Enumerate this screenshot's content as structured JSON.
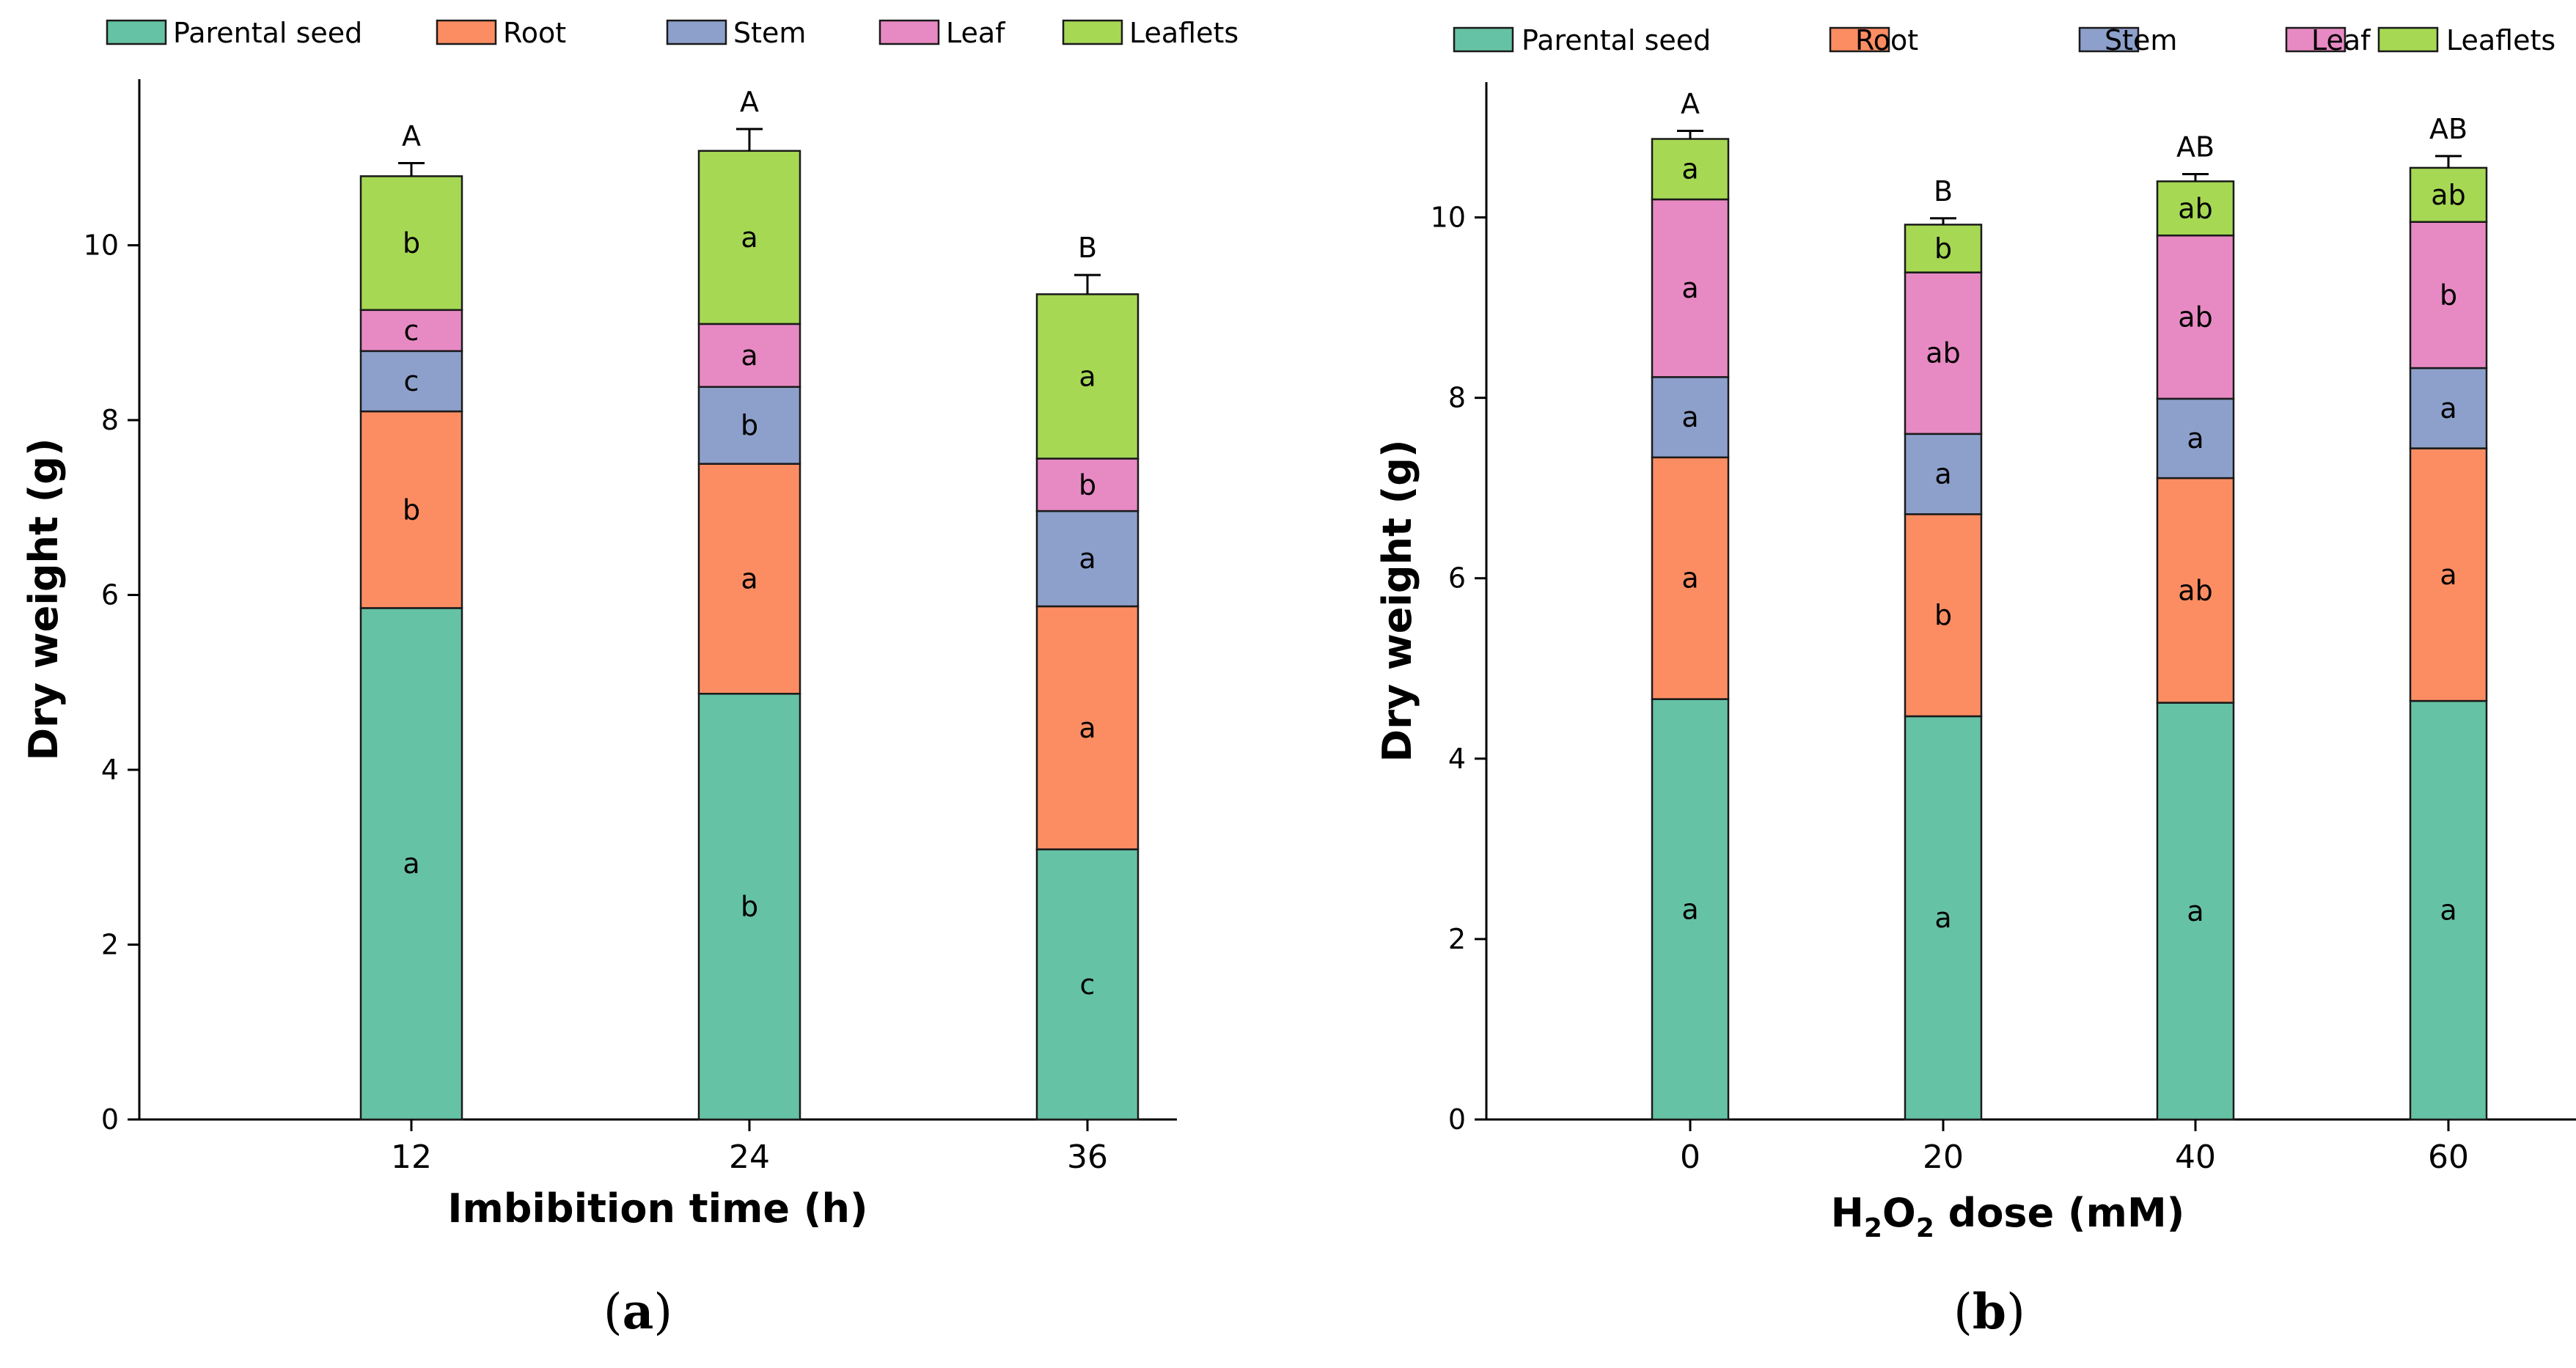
{
  "chart_data": [
    {
      "type": "bar",
      "stacked": true,
      "panel_label": "a",
      "xlabel": "Imbibition time (h)",
      "ylabel": "Dry weight (g)",
      "ylim": [
        0,
        11.9
      ],
      "yticks": [
        "0",
        "2",
        "4",
        "6",
        "8",
        "10"
      ],
      "categories": [
        "12",
        "24",
        "36"
      ],
      "legend_position": "top",
      "series": [
        {
          "name": "Parental seed",
          "color": "#66c2a5",
          "values": [
            5.85,
            4.87,
            3.09
          ],
          "letters": [
            "a",
            "b",
            "c"
          ]
        },
        {
          "name": "Root",
          "color": "#fc8d62",
          "values": [
            2.25,
            2.63,
            2.78
          ],
          "letters": [
            "b",
            "a",
            "a"
          ]
        },
        {
          "name": "Stem",
          "color": "#8da0cb",
          "values": [
            0.69,
            0.88,
            1.09
          ],
          "letters": [
            "c",
            "b",
            "a"
          ]
        },
        {
          "name": "Leaf",
          "color": "#e78ac3",
          "values": [
            0.47,
            0.72,
            0.6
          ],
          "letters": [
            "c",
            "a",
            "b"
          ]
        },
        {
          "name": "Leaflets",
          "color": "#a6d854",
          "values": [
            1.53,
            1.98,
            1.88
          ],
          "letters": [
            "b",
            "a",
            "a"
          ]
        }
      ],
      "error": [
        0.15,
        0.25,
        0.22
      ],
      "totals_letters": [
        "A",
        "A",
        "B"
      ]
    },
    {
      "type": "bar",
      "stacked": true,
      "panel_label": "b",
      "xlabel_main": "H",
      "xlabel_sub1": "2",
      "xlabel_mid": "O",
      "xlabel_sub2": "2",
      "xlabel_tail": " dose (mM)",
      "ylabel": "Dry weight (g)",
      "ylim": [
        0,
        11.5
      ],
      "yticks": [
        "0",
        "2",
        "4",
        "6",
        "8",
        "10"
      ],
      "categories": [
        "0",
        "20",
        "40",
        "60"
      ],
      "legend_position": "top",
      "series": [
        {
          "name": "Parental seed",
          "color": "#66c2a5",
          "values": [
            4.66,
            4.47,
            4.62,
            4.64
          ],
          "letters": [
            "a",
            "a",
            "a",
            "a"
          ]
        },
        {
          "name": "Root",
          "color": "#fc8d62",
          "values": [
            2.68,
            2.24,
            2.49,
            2.8
          ],
          "letters": [
            "a",
            "b",
            "ab",
            "a"
          ]
        },
        {
          "name": "Stem",
          "color": "#8da0cb",
          "values": [
            0.89,
            0.89,
            0.88,
            0.89
          ],
          "letters": [
            "a",
            "a",
            "a",
            "a"
          ]
        },
        {
          "name": "Leaf",
          "color": "#e78ac3",
          "values": [
            1.97,
            1.79,
            1.81,
            1.62
          ],
          "letters": [
            "a",
            "ab",
            "ab",
            "b"
          ]
        },
        {
          "name": "Leaflets",
          "color": "#a6d854",
          "values": [
            0.67,
            0.53,
            0.6,
            0.6
          ],
          "letters": [
            "a",
            "b",
            "ab",
            "ab"
          ]
        }
      ],
      "error": [
        0.09,
        0.07,
        0.08,
        0.13
      ],
      "totals_letters": [
        "A",
        "B",
        "AB",
        "AB"
      ]
    }
  ]
}
